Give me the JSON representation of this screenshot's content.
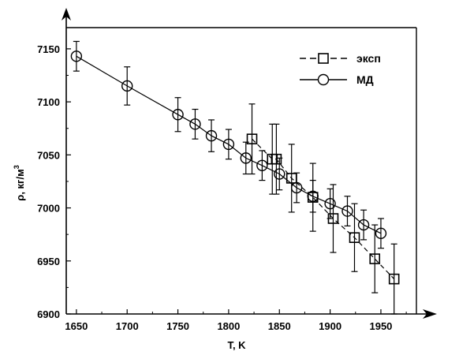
{
  "chart_data": {
    "type": "scatter",
    "xlabel": "T, K",
    "ylabel": "ρ, кг/м",
    "ylabel_sup": "3",
    "xlim": [
      1640,
      1985
    ],
    "ylim": [
      6900,
      7170
    ],
    "xticks": [
      1650,
      1700,
      1750,
      1800,
      1850,
      1900,
      1950
    ],
    "yticks": [
      6900,
      6950,
      7000,
      7050,
      7100,
      7150
    ],
    "legend_position": "top-right",
    "colors": {
      "axis": "#000000",
      "series": "#000000"
    },
    "series": [
      {
        "name": "эксп",
        "marker": "square",
        "line": "dashed",
        "x": [
          1823,
          1843,
          1847,
          1862,
          1883,
          1903,
          1924,
          1944,
          1963
        ],
        "y": [
          7065,
          7046,
          7046,
          7028,
          7010,
          6990,
          6972,
          6952,
          6933
        ],
        "err": [
          33,
          33,
          33,
          32,
          32,
          32,
          32,
          32,
          33
        ]
      },
      {
        "name": "МД",
        "marker": "circle",
        "line": "solid",
        "x": [
          1650,
          1700,
          1750,
          1767,
          1783,
          1800,
          1817,
          1833,
          1850,
          1867,
          1883,
          1900,
          1917,
          1933,
          1950
        ],
        "y": [
          7143,
          7115,
          7088,
          7079,
          7068,
          7060,
          7047,
          7040,
          7032,
          7019,
          7011,
          7004,
          6997,
          6984,
          6976
        ],
        "err": [
          14,
          18,
          16,
          14,
          15,
          14,
          15,
          14,
          15,
          14,
          15,
          14,
          14,
          14,
          14
        ]
      }
    ]
  }
}
